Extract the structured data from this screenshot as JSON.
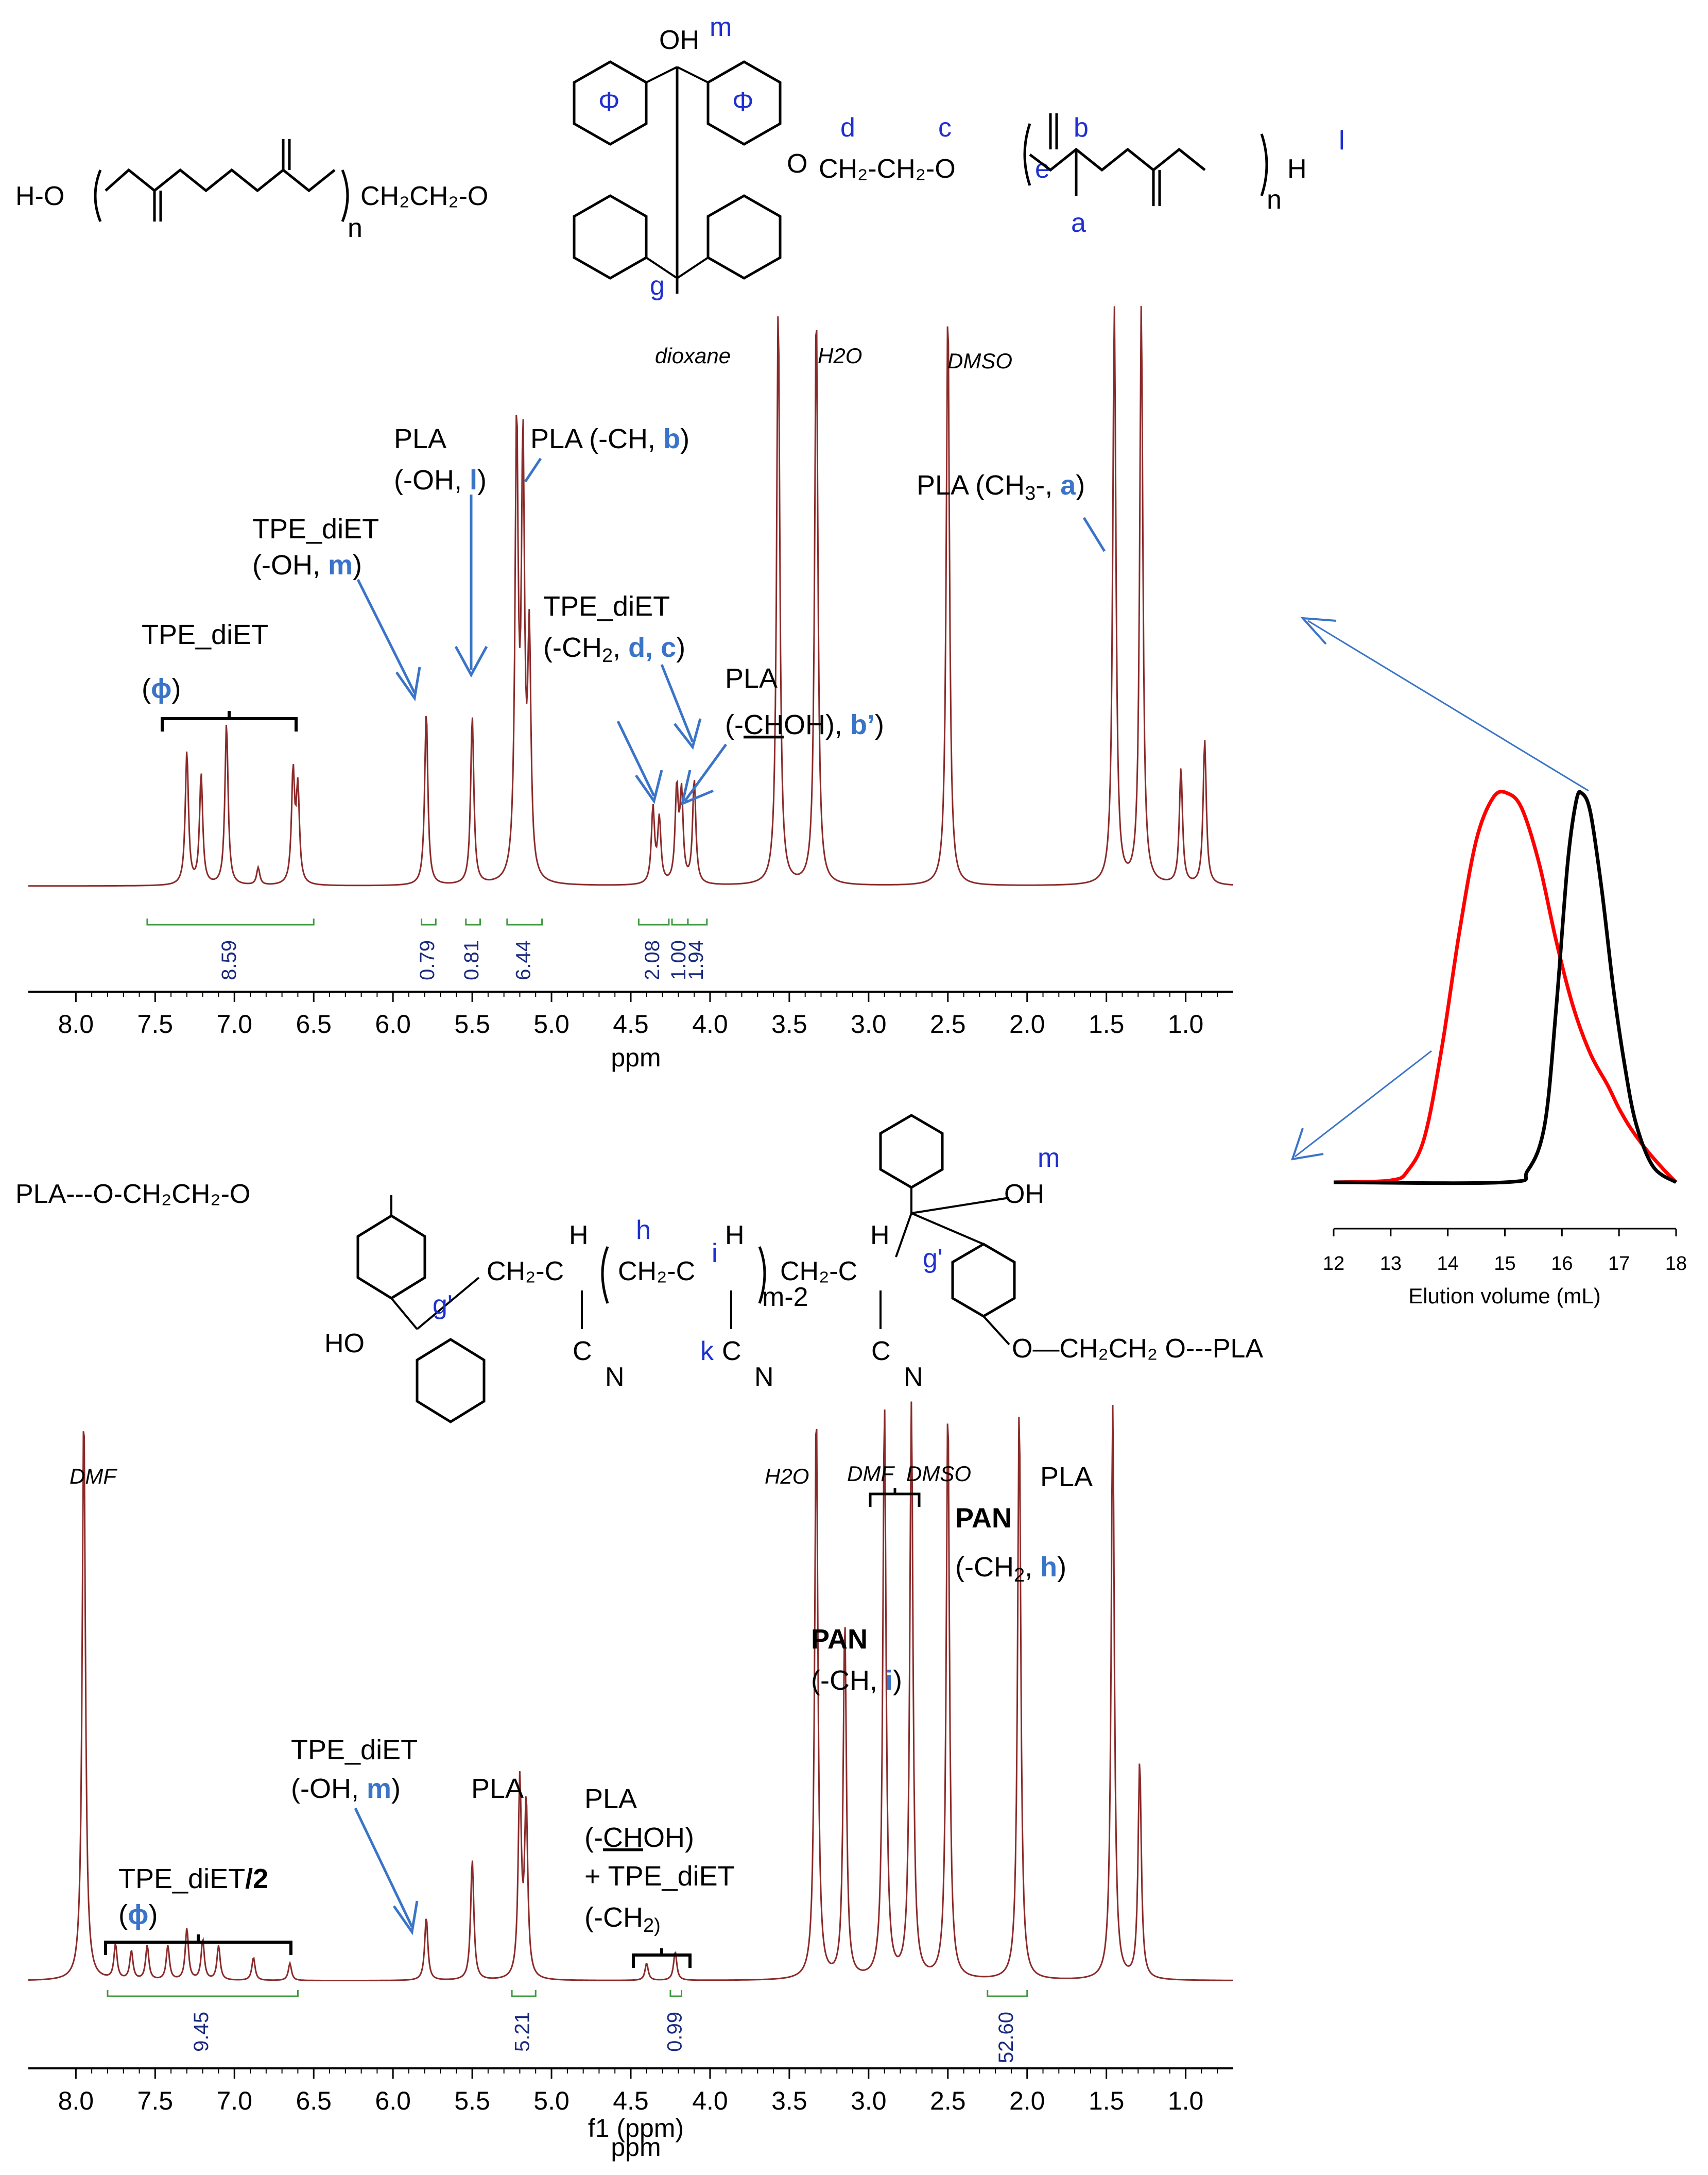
{
  "chart_data": [
    {
      "type": "line",
      "name_in_figure": "",
      "xlabel": "ppm",
      "xlim": [
        8.3,
        0.7
      ],
      "xticks": [
        "8.0",
        "7.5",
        "7.0",
        "6.5",
        "6.0",
        "5.5",
        "5.0",
        "4.5",
        "4.0",
        "3.5",
        "3.0",
        "2.5",
        "2.0",
        "1.5",
        "1.0"
      ],
      "solvents": [
        "dioxane",
        "H2O",
        "DMSO"
      ],
      "peaks": [
        {
          "ppm": 7.3,
          "h": 0.23
        },
        {
          "ppm": 7.21,
          "h": 0.19
        },
        {
          "ppm": 7.05,
          "h": 0.28
        },
        {
          "ppm": 6.85,
          "h": 0.03
        },
        {
          "ppm": 6.63,
          "h": 0.19
        },
        {
          "ppm": 6.6,
          "h": 0.16
        },
        {
          "ppm": 5.79,
          "h": 0.3
        },
        {
          "ppm": 5.5,
          "h": 0.29
        },
        {
          "ppm": 5.22,
          "h": 0.77
        },
        {
          "ppm": 5.18,
          "h": 0.72
        },
        {
          "ppm": 5.14,
          "h": 0.4
        },
        {
          "ppm": 4.36,
          "h": 0.13
        },
        {
          "ppm": 4.32,
          "h": 0.11
        },
        {
          "ppm": 4.21,
          "h": 0.16
        },
        {
          "ppm": 4.18,
          "h": 0.15
        },
        {
          "ppm": 4.1,
          "h": 0.18
        },
        {
          "ppm": 3.57,
          "h": 1.0
        },
        {
          "ppm": 3.33,
          "h": 1.0
        },
        {
          "ppm": 2.5,
          "h": 1.0
        },
        {
          "ppm": 1.45,
          "h": 1.0
        },
        {
          "ppm": 1.28,
          "h": 1.0
        },
        {
          "ppm": 1.03,
          "h": 0.2
        },
        {
          "ppm": 0.88,
          "h": 0.25
        }
      ],
      "integrals": [
        {
          "from": 7.55,
          "to": 6.5,
          "value": "8.59"
        },
        {
          "from": 5.82,
          "to": 5.73,
          "value": "0.79"
        },
        {
          "from": 5.54,
          "to": 5.45,
          "value": "0.81"
        },
        {
          "from": 5.28,
          "to": 5.06,
          "value": "6.44"
        },
        {
          "from": 4.45,
          "to": 4.26,
          "value": "2.08"
        },
        {
          "from": 4.24,
          "to": 4.14,
          "value": "1.00"
        },
        {
          "from": 4.14,
          "to": 4.02,
          "value": "1.94"
        }
      ],
      "annotations": {
        "tpe_phi_1": "TPE_diET",
        "tpe_phi_2": "(",
        "tpe_phi_letter": "ɸ",
        "tpe_phi_3": ")",
        "tpe_oh_1": "TPE_diET",
        "tpe_oh_2": "(-OH, ",
        "tpe_oh_letter": "m",
        "tpe_oh_3": ")",
        "pla_oh_1": "PLA",
        "pla_oh_2": "(-OH, ",
        "pla_oh_letter": "l",
        "pla_oh_3": ")",
        "pla_ch_1": "PLA (-CH, ",
        "pla_ch_letter": "b",
        "pla_ch_2": ")",
        "tpe_ch2_1": "TPE_diET",
        "tpe_ch2_2": "(-CH",
        "tpe_ch2_sub": "2",
        "tpe_ch2_3": ", ",
        "tpe_ch2_letter": "d, c",
        "tpe_ch2_4": ")",
        "pla_choh_1": "PLA",
        "pla_choh_2": "(-",
        "pla_choh_u": "CH",
        "pla_choh_3": "OH), ",
        "pla_choh_letter": "b’",
        "pla_choh_4": ")",
        "pla_ch3_1": "PLA (CH",
        "pla_ch3_sub": "3",
        "pla_ch3_2": "-, ",
        "pla_ch3_letter": "a",
        "pla_ch3_3": ")"
      }
    },
    {
      "type": "line",
      "xlabel": "ppm",
      "xlabel_overlap": "f1 (ppm)",
      "xlim": [
        8.3,
        0.7
      ],
      "xticks": [
        "8.0",
        "7.5",
        "7.0",
        "6.5",
        "6.0",
        "5.5",
        "5.0",
        "4.5",
        "4.0",
        "3.5",
        "3.0",
        "2.5",
        "2.0",
        "1.5",
        "1.0"
      ],
      "solvents": [
        "DMF",
        "H2O",
        "DMF",
        "DMSO"
      ],
      "peaks": [
        {
          "ppm": 7.95,
          "h": 1.0
        },
        {
          "ppm": 7.75,
          "h": 0.06
        },
        {
          "ppm": 7.65,
          "h": 0.05
        },
        {
          "ppm": 7.55,
          "h": 0.06
        },
        {
          "ppm": 7.42,
          "h": 0.06
        },
        {
          "ppm": 7.3,
          "h": 0.09
        },
        {
          "ppm": 7.2,
          "h": 0.07
        },
        {
          "ppm": 7.1,
          "h": 0.06
        },
        {
          "ppm": 6.88,
          "h": 0.04
        },
        {
          "ppm": 6.65,
          "h": 0.03
        },
        {
          "ppm": 5.79,
          "h": 0.11
        },
        {
          "ppm": 5.5,
          "h": 0.21
        },
        {
          "ppm": 5.2,
          "h": 0.34
        },
        {
          "ppm": 5.16,
          "h": 0.3
        },
        {
          "ppm": 4.4,
          "h": 0.03
        },
        {
          "ppm": 4.22,
          "h": 0.05
        },
        {
          "ppm": 3.33,
          "h": 1.0
        },
        {
          "ppm": 3.15,
          "h": 0.62
        },
        {
          "ppm": 2.9,
          "h": 1.0
        },
        {
          "ppm": 2.73,
          "h": 1.0
        },
        {
          "ppm": 2.5,
          "h": 1.0
        },
        {
          "ppm": 2.05,
          "h": 1.0
        },
        {
          "ppm": 1.46,
          "h": 1.0
        },
        {
          "ppm": 1.29,
          "h": 0.38
        }
      ],
      "integrals": [
        {
          "from": 7.8,
          "to": 6.6,
          "value": "9.45"
        },
        {
          "from": 5.25,
          "to": 5.1,
          "value": "5.21"
        },
        {
          "from": 4.25,
          "to": 4.18,
          "value": "0.99"
        },
        {
          "from": 2.25,
          "to": 2.0,
          "value": "52.60"
        }
      ],
      "annotations": {
        "tpe2_phi_1": "TPE_diET",
        "tpe2_phi_2": "/2",
        "tpe2_phi_3": "(",
        "tpe2_phi_letter": "ɸ",
        "tpe2_phi_4": ")",
        "tpe2_oh_1": "TPE_diET",
        "tpe2_oh_2": "(-OH, ",
        "tpe2_oh_letter": "m",
        "tpe2_oh_3": ")",
        "pla2": "PLA",
        "pla2_choh_1": "PLA",
        "pla2_choh_2": "(-",
        "pla2_choh_u": "CH",
        "pla2_choh_3": "OH)",
        "pla2_choh_4": "+ TPE_diET",
        "pla2_choh_5": "(-CH",
        "pla2_choh_sub": "2)",
        "pan_ch_1": "PAN",
        "pan_ch_2": "(-CH, ",
        "pan_ch_letter": "i",
        "pan_ch_3": ")",
        "pan_ch2_1": "PAN",
        "pan_ch2_2": "(-CH",
        "pan_ch2_sub": "2",
        "pan_ch2_3": ", ",
        "pan_ch2_letter": "h",
        "pan_ch2_4": ")",
        "pla2_right": "PLA"
      }
    },
    {
      "type": "line",
      "xlabel": "Elution volume (mL)",
      "xlim": [
        12,
        18
      ],
      "xticks": [
        "12",
        "13",
        "14",
        "15",
        "16",
        "17",
        "18"
      ],
      "series": [
        {
          "color": "#ff0000",
          "x": [
            12.0,
            13.0,
            13.3,
            13.6,
            13.9,
            14.2,
            14.5,
            14.8,
            15.05,
            15.3,
            15.6,
            15.9,
            16.2,
            16.5,
            16.8,
            17.0,
            17.2,
            17.5,
            17.8,
            18.0
          ],
          "y": [
            0.0,
            0.005,
            0.03,
            0.12,
            0.35,
            0.64,
            0.88,
            0.99,
            1.0,
            0.96,
            0.82,
            0.62,
            0.45,
            0.33,
            0.25,
            0.19,
            0.14,
            0.08,
            0.03,
            0.0
          ]
        },
        {
          "color": "#000000",
          "x": [
            12.0,
            15.0,
            15.4,
            15.7,
            15.9,
            16.1,
            16.25,
            16.35,
            16.5,
            16.7,
            16.9,
            17.1,
            17.3,
            17.6,
            18.0
          ],
          "y": [
            0.0,
            0.0,
            0.03,
            0.15,
            0.45,
            0.82,
            0.98,
            1.0,
            0.95,
            0.75,
            0.5,
            0.3,
            0.15,
            0.04,
            0.0
          ]
        }
      ]
    }
  ],
  "structure_top": {
    "ho": "H-O",
    "n_left": "n",
    "ch2ch2_left": "CH₂CH₂-O",
    "oh": "OH",
    "m": "m",
    "phi1": "Φ",
    "phi2": "Φ",
    "g": "g",
    "o_right": "O",
    "ch2ch2_right": "CH₂-CH₂-O",
    "d": "d",
    "c": "c",
    "e": "e",
    "b": "b",
    "a": "a",
    "n_right": "n",
    "h_end": "H",
    "l": "l"
  },
  "structure_bottom": {
    "pla_left": "PLA---O-CH₂CH₂-O",
    "ho": "HO",
    "g1": "g'",
    "g2": "g'",
    "ch2_1": "CH₂-C",
    "h1": "H",
    "h_label": "h",
    "i_label": "i",
    "k_label": "k",
    "ch2_mid": "CH₂-C",
    "h2": "H",
    "m2": "m-2",
    "ch2_2": "CH₂-C",
    "h3": "H",
    "cn": "C",
    "n_atom": "N",
    "oh": "OH",
    "m": "m",
    "pla_right": "O—CH₂CH₂ O---PLA"
  }
}
